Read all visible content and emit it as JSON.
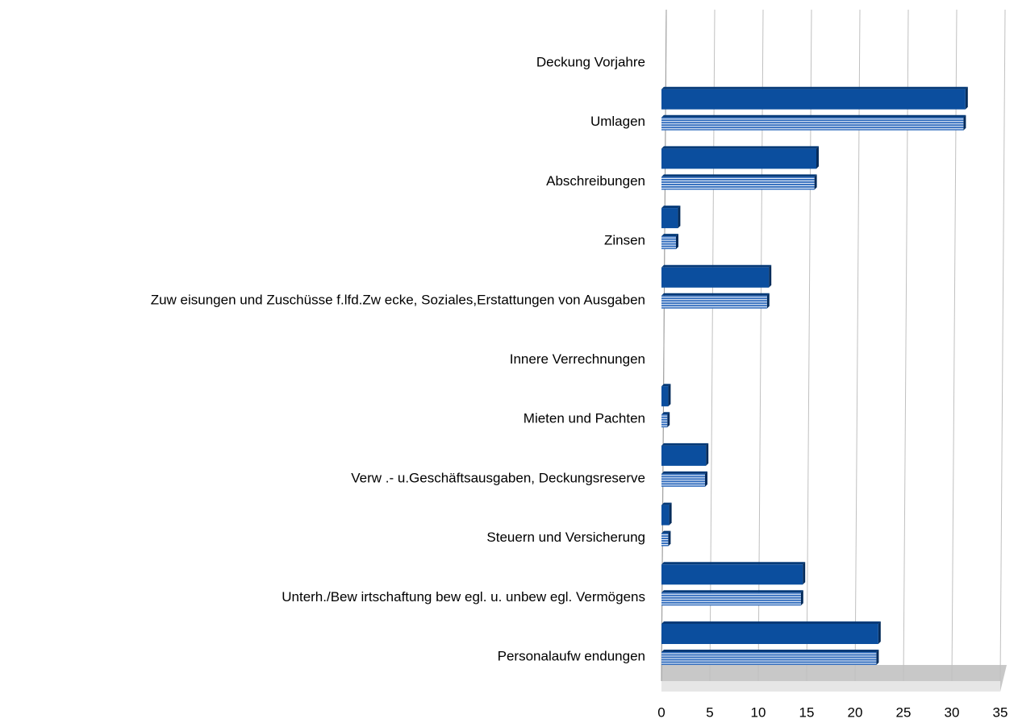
{
  "chart_data": {
    "type": "bar",
    "orientation": "horizontal",
    "categories": [
      "Deckung Vorjahre",
      "Umlagen",
      "Abschreibungen",
      "Zinsen",
      "Zuw eisungen und Zuschüsse f.lfd.Zw ecke, Soziales,Erstattungen von Ausgaben",
      "Innere Verrechnungen",
      "Mieten und Pachten",
      "Verw .- u.Geschäftsausgaben, Deckungsreserve",
      "Steuern und Versicherung",
      "Unterh./Bew irtschaftung bew egl. u. unbew egl. Vermögens",
      "Personalaufw endungen"
    ],
    "series": [
      {
        "color": "#0b4e9e",
        "values": [
          0,
          31.4,
          16,
          1.7,
          11.1,
          0,
          0.7,
          4.6,
          0.8,
          14.6,
          22.4
        ]
      },
      {
        "color": "#2f6bbd",
        "values": [
          0,
          31.2,
          15.8,
          1.5,
          10.9,
          0,
          0.6,
          4.5,
          0.7,
          14.4,
          22.2
        ]
      }
    ],
    "xlim": [
      0,
      35
    ],
    "xticks": [
      0,
      5,
      10,
      15,
      20,
      25,
      30,
      35
    ],
    "grid": true
  }
}
